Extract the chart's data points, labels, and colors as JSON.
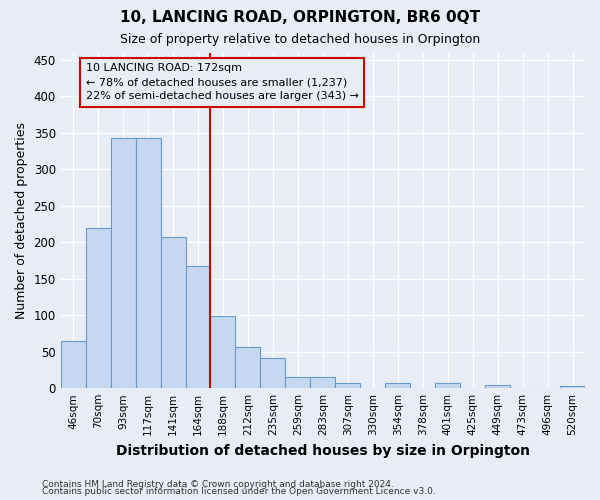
{
  "title": "10, LANCING ROAD, ORPINGTON, BR6 0QT",
  "subtitle": "Size of property relative to detached houses in Orpington",
  "xlabel": "Distribution of detached houses by size in Orpington",
  "ylabel": "Number of detached properties",
  "bar_labels": [
    "46sqm",
    "70sqm",
    "93sqm",
    "117sqm",
    "141sqm",
    "164sqm",
    "188sqm",
    "212sqm",
    "235sqm",
    "259sqm",
    "283sqm",
    "307sqm",
    "330sqm",
    "354sqm",
    "378sqm",
    "401sqm",
    "425sqm",
    "449sqm",
    "473sqm",
    "496sqm",
    "520sqm"
  ],
  "bar_values": [
    65,
    220,
    343,
    343,
    207,
    167,
    99,
    56,
    42,
    15,
    15,
    7,
    0,
    7,
    0,
    7,
    0,
    5,
    0,
    0,
    3
  ],
  "bar_color": "#c5d8f0",
  "bar_edge_color": "#6699cc",
  "background_color": "#e8edf5",
  "grid_color": "#ffffff",
  "property_line_x": 6,
  "annotation_line1": "10 LANCING ROAD: 172sqm",
  "annotation_line2": "← 78% of detached houses are smaller (1,237)",
  "annotation_line3": "22% of semi-detached houses are larger (343) →",
  "vline_color": "#cc0000",
  "annotation_box_edge": "#cc0000",
  "ylim": [
    0,
    460
  ],
  "yticks": [
    0,
    50,
    100,
    150,
    200,
    250,
    300,
    350,
    400,
    450
  ],
  "footer1": "Contains HM Land Registry data © Crown copyright and database right 2024.",
  "footer2": "Contains public sector information licensed under the Open Government Licence v3.0."
}
